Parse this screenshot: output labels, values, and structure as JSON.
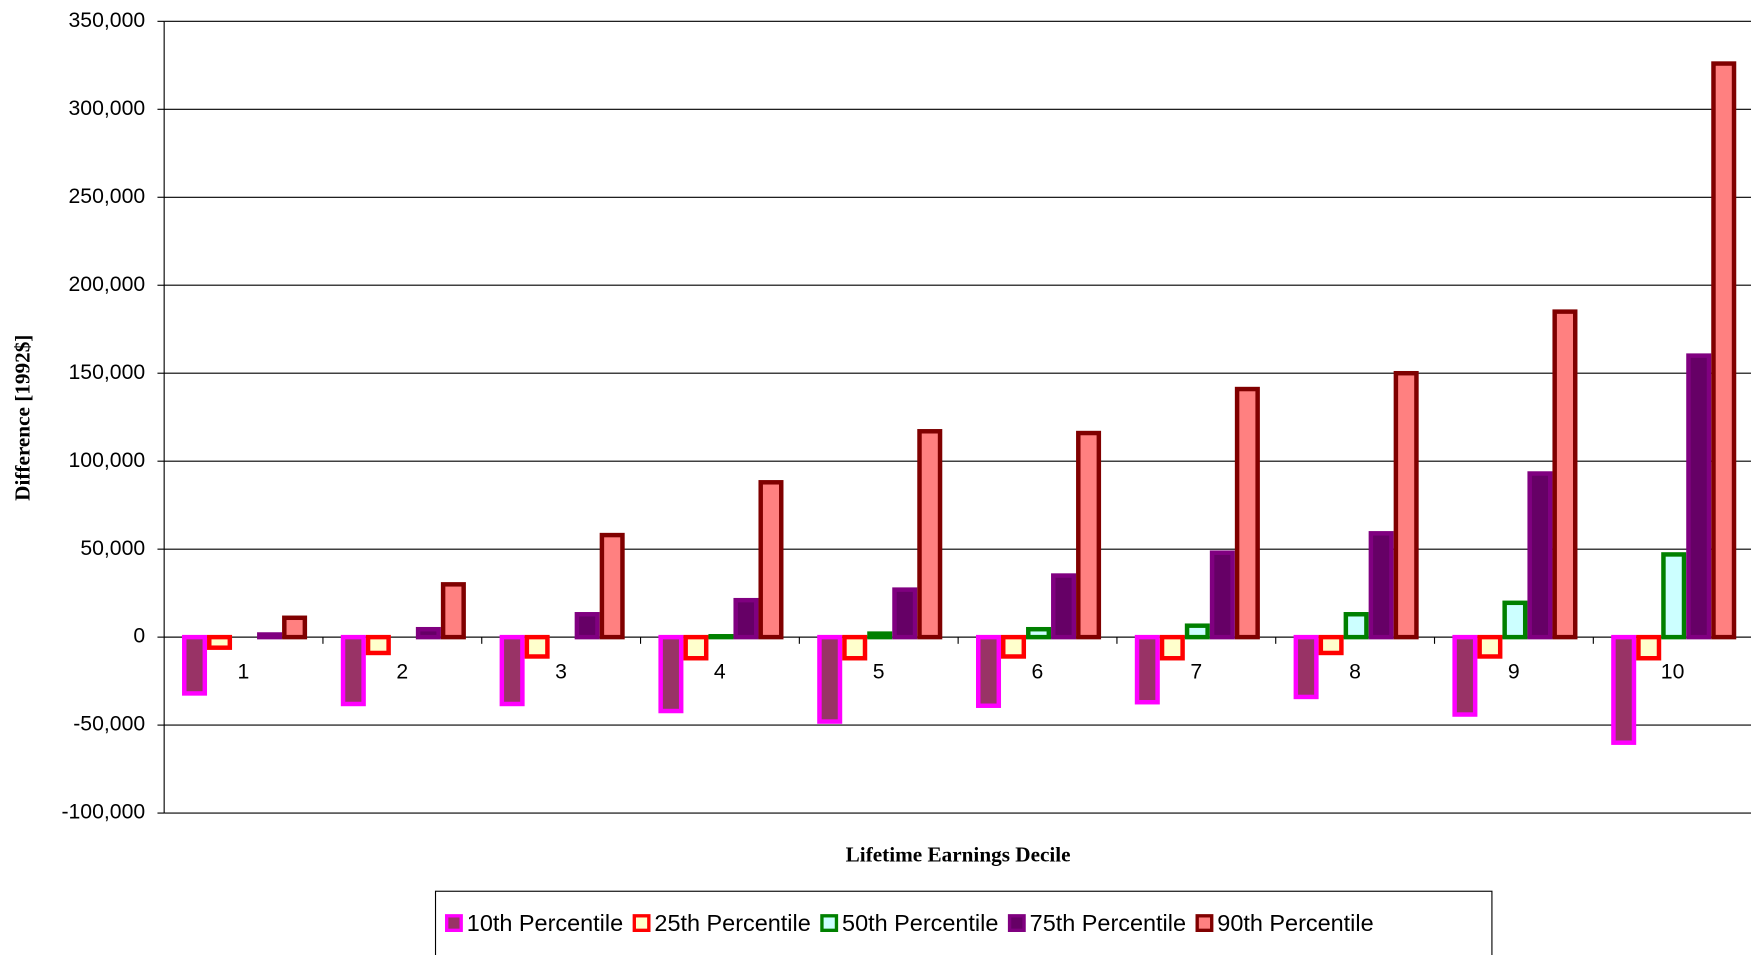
{
  "chart_data": {
    "type": "bar",
    "x_label": "Lifetime Earnings Decile",
    "y_label": "Difference [1992$]",
    "categories": [
      "1",
      "2",
      "3",
      "4",
      "5",
      "6",
      "7",
      "8",
      "9",
      "10"
    ],
    "series": [
      {
        "name": "10th Percentile",
        "color": "#993366",
        "edgecolor": "#ff00ff",
        "values": [
          -32000,
          -38000,
          -38000,
          -42000,
          -48000,
          -39000,
          -37000,
          -34000,
          -44000,
          -60000
        ]
      },
      {
        "name": "25th Percentile",
        "color": "#ffffcc",
        "edgecolor": "#ff0000",
        "values": [
          -6000,
          -9000,
          -11000,
          -12000,
          -12000,
          -11000,
          -12000,
          -9000,
          -11000,
          -12000
        ]
      },
      {
        "name": "50th Percentile",
        "color": "#ccffff",
        "edgecolor": "#008000",
        "values": [
          0,
          0,
          0,
          500,
          2000,
          4500,
          6500,
          13000,
          19500,
          47000
        ]
      },
      {
        "name": "75th Percentile",
        "color": "#660066",
        "edgecolor": "#800080",
        "values": [
          1500,
          4500,
          13000,
          21000,
          27000,
          35000,
          48000,
          59000,
          93000,
          160000
        ]
      },
      {
        "name": "90th Percentile",
        "color": "#ff8080",
        "edgecolor": "#800000",
        "values": [
          11000,
          30000,
          58000,
          88000,
          117000,
          116000,
          141000,
          150000,
          185000,
          326000
        ]
      }
    ],
    "ylim": [
      -100000,
      350000
    ],
    "yticks": [
      {
        "value": -100000,
        "label": "-100,000"
      },
      {
        "value": -50000,
        "label": "-50,000"
      },
      0,
      {
        "value": 50000,
        "label": "50,000"
      },
      {
        "value": 100000,
        "label": "100,000"
      },
      {
        "value": 150000,
        "label": "150,000"
      },
      {
        "value": 200000,
        "label": "200,000"
      },
      {
        "value": 250000,
        "label": "250,000"
      },
      {
        "value": 300000,
        "label": "300,000"
      },
      {
        "value": 350000,
        "label": "350,000"
      }
    ],
    "grid": true,
    "legend": "bottom"
  }
}
